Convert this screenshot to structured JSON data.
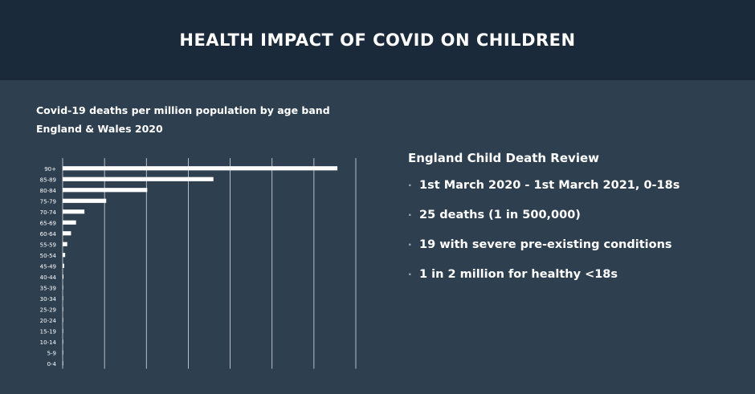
{
  "header": {
    "title": "HEALTH IMPACT OF COVID ON CHILDREN"
  },
  "chart_data": {
    "type": "bar",
    "orientation": "horizontal",
    "title": "Covid-19 deaths per million population by age band",
    "subtitle": "England & Wales 2020",
    "categories": [
      "90+",
      "85-89",
      "80-84",
      "75-79",
      "70-74",
      "65-69",
      "60-64",
      "55-59",
      "50-54",
      "45-49",
      "40-44",
      "35-39",
      "30-34",
      "25-29",
      "20-24",
      "15-19",
      "10-14",
      "5-9",
      "0-4"
    ],
    "values": [
      32800,
      18000,
      10100,
      5200,
      2600,
      1600,
      1000,
      550,
      300,
      180,
      100,
      55,
      30,
      15,
      8,
      4,
      2,
      1,
      3
    ],
    "xlim": [
      0,
      35000
    ],
    "xticks": [
      "0",
      "5000",
      "10000",
      "15000",
      "20000",
      "25000",
      "30000",
      "35000"
    ],
    "grid": "vertical",
    "bar_color": "#ffffff"
  },
  "panel": {
    "title": "England Child Death Review",
    "bullet": "·",
    "items": [
      "1st March 2020 - 1st March 2021, 0-18s",
      "25 deaths (1 in 500,000)",
      "19 with severe pre-existing conditions",
      "1 in 2 million for healthy <18s"
    ]
  }
}
